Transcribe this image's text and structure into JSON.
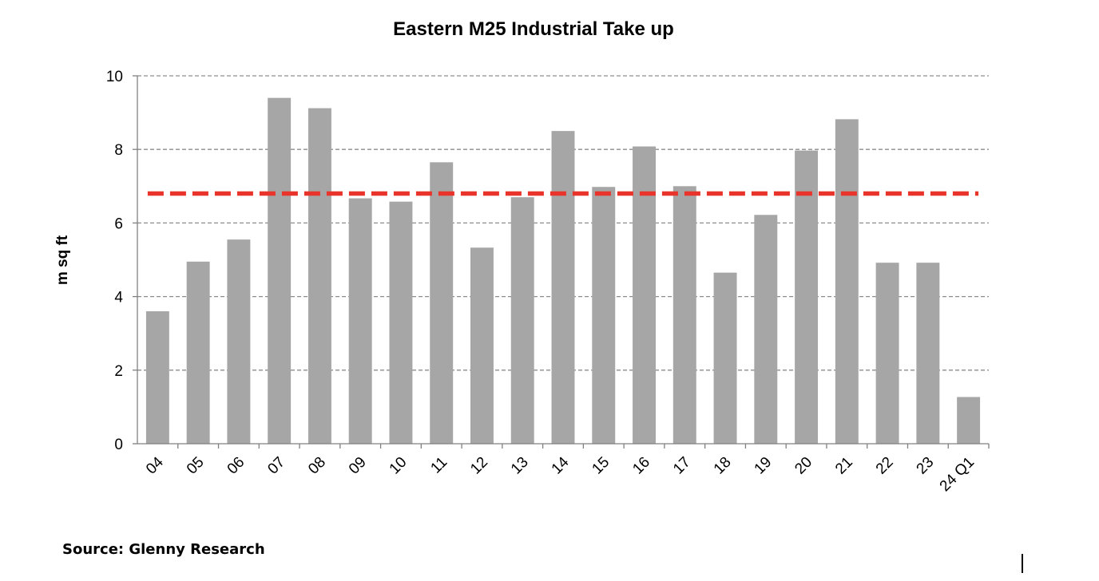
{
  "chart_data": {
    "type": "bar",
    "title": "Eastern M25 Industrial Take up",
    "xlabel": "",
    "ylabel": "m sq ft",
    "categories": [
      "04",
      "05",
      "06",
      "07",
      "08",
      "09",
      "10",
      "11",
      "12",
      "13",
      "14",
      "15",
      "16",
      "17",
      "18",
      "19",
      "20",
      "21",
      "22",
      "23",
      "24 Q1"
    ],
    "values": [
      3.6,
      4.95,
      5.55,
      9.4,
      9.12,
      6.67,
      6.58,
      7.65,
      5.33,
      6.7,
      8.5,
      6.98,
      8.08,
      7.0,
      4.65,
      6.22,
      7.97,
      8.82,
      4.92,
      4.92,
      1.27
    ],
    "average_line": 6.8,
    "ylim": [
      0,
      10
    ],
    "yticks": [
      0,
      2,
      4,
      6,
      8,
      10
    ],
    "grid": true,
    "grid_style": "dashed",
    "legend": "none",
    "colors": {
      "bar": "#a6a6a6",
      "average_line": "#e8342a",
      "grid": "#8c8c8c",
      "axis": "#808080"
    }
  },
  "source": "Source: Glenny Research"
}
